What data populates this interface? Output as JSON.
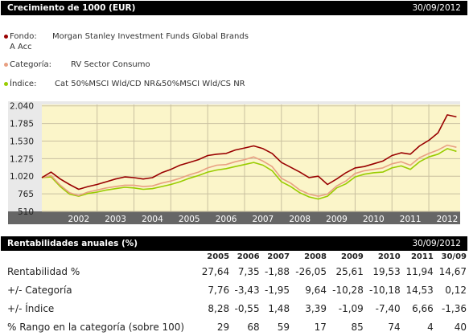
{
  "header": {
    "title": "Crecimiento de 1000 (EUR)",
    "date": "30/09/2012"
  },
  "legend": [
    {
      "label": "Fondo:",
      "value": "Morgan Stanley Investment Funds Global Brands",
      "value2": "A Acc",
      "color": "#990000"
    },
    {
      "label": "Categoría:",
      "value": "RV Sector Consumo",
      "color": "#e8a082"
    },
    {
      "label": "Índice:",
      "value": "Cat 50%MSCI Wld/CD NR&50%MSCI Wld/CS NR",
      "color": "#99cc00"
    }
  ],
  "chart_data": {
    "type": "line",
    "xlim": [
      2001.5,
      2012.85
    ],
    "ylim": [
      510,
      2060
    ],
    "yticks": [
      "2.040",
      "1.785",
      "1.530",
      "1.275",
      "1.020",
      "765",
      "510"
    ],
    "ytick_values": [
      2040,
      1785,
      1530,
      1275,
      1020,
      765,
      510
    ],
    "xticks": [
      "2002",
      "2003",
      "2004",
      "2005",
      "2006",
      "2007",
      "2008",
      "2009",
      "2010",
      "2011",
      "2012"
    ],
    "grid": true,
    "series": [
      {
        "name": "Fondo",
        "color": "#990000",
        "x": [
          2001.5,
          2001.75,
          2002.0,
          2002.25,
          2002.5,
          2002.75,
          2003.0,
          2003.25,
          2003.5,
          2003.75,
          2004.0,
          2004.25,
          2004.5,
          2004.75,
          2005.0,
          2005.25,
          2005.5,
          2005.75,
          2006.0,
          2006.25,
          2006.5,
          2006.75,
          2007.0,
          2007.25,
          2007.5,
          2007.75,
          2008.0,
          2008.25,
          2008.5,
          2008.75,
          2009.0,
          2009.25,
          2009.5,
          2009.75,
          2010.0,
          2010.25,
          2010.5,
          2010.75,
          2011.0,
          2011.25,
          2011.5,
          2011.75,
          2012.0,
          2012.25,
          2012.5,
          2012.75
        ],
        "y": [
          1000,
          1080,
          980,
          900,
          830,
          870,
          900,
          940,
          980,
          1010,
          1000,
          980,
          1000,
          1070,
          1120,
          1180,
          1220,
          1260,
          1320,
          1340,
          1350,
          1400,
          1430,
          1460,
          1420,
          1350,
          1220,
          1150,
          1080,
          1000,
          1020,
          900,
          980,
          1070,
          1140,
          1160,
          1200,
          1240,
          1320,
          1360,
          1340,
          1460,
          1540,
          1650,
          1910,
          1880
        ]
      },
      {
        "name": "Categoría",
        "color": "#e8a082",
        "x": [
          2001.5,
          2001.75,
          2002.0,
          2002.25,
          2002.5,
          2002.75,
          2003.0,
          2003.25,
          2003.5,
          2003.75,
          2004.0,
          2004.25,
          2004.5,
          2004.75,
          2005.0,
          2005.25,
          2005.5,
          2005.75,
          2006.0,
          2006.25,
          2006.5,
          2006.75,
          2007.0,
          2007.25,
          2007.5,
          2007.75,
          2008.0,
          2008.25,
          2008.5,
          2008.75,
          2009.0,
          2009.25,
          2009.5,
          2009.75,
          2010.0,
          2010.25,
          2010.5,
          2010.75,
          2011.0,
          2011.25,
          2011.5,
          2011.75,
          2012.0,
          2012.25,
          2012.5,
          2012.75
        ],
        "y": [
          1000,
          1030,
          890,
          780,
          740,
          790,
          820,
          850,
          870,
          890,
          890,
          870,
          880,
          920,
          950,
          990,
          1040,
          1080,
          1140,
          1180,
          1190,
          1230,
          1260,
          1300,
          1240,
          1160,
          990,
          920,
          820,
          760,
          730,
          760,
          880,
          950,
          1060,
          1100,
          1120,
          1140,
          1200,
          1230,
          1180,
          1290,
          1350,
          1400,
          1470,
          1440
        ]
      },
      {
        "name": "Índice",
        "color": "#99cc00",
        "x": [
          2001.5,
          2001.75,
          2002.0,
          2002.25,
          2002.5,
          2002.75,
          2003.0,
          2003.25,
          2003.5,
          2003.75,
          2004.0,
          2004.25,
          2004.5,
          2004.75,
          2005.0,
          2005.25,
          2005.5,
          2005.75,
          2006.0,
          2006.25,
          2006.5,
          2006.75,
          2007.0,
          2007.25,
          2007.5,
          2007.75,
          2008.0,
          2008.25,
          2008.5,
          2008.75,
          2009.0,
          2009.25,
          2009.5,
          2009.75,
          2010.0,
          2010.25,
          2010.5,
          2010.75,
          2011.0,
          2011.25,
          2011.5,
          2011.75,
          2012.0,
          2012.25,
          2012.5,
          2012.75
        ],
        "y": [
          1000,
          1010,
          870,
          760,
          730,
          770,
          790,
          820,
          840,
          860,
          850,
          830,
          840,
          870,
          900,
          940,
          990,
          1030,
          1080,
          1110,
          1130,
          1160,
          1190,
          1220,
          1180,
          1100,
          940,
          870,
          780,
          720,
          690,
          730,
          850,
          910,
          1010,
          1050,
          1070,
          1080,
          1140,
          1170,
          1120,
          1230,
          1300,
          1340,
          1420,
          1380
        ]
      }
    ]
  },
  "annual": {
    "title": "Rentabilidades anuales (%)",
    "date": "30/09/2012",
    "columns": [
      "2005",
      "2006",
      "2007",
      "2008",
      "2009",
      "2010",
      "2011",
      "30/09"
    ],
    "rows": [
      {
        "label": "Rentabilidad %",
        "values": [
          "27,64",
          "7,35",
          "-1,88",
          "-26,05",
          "25,61",
          "19,53",
          "11,94",
          "14,67"
        ]
      },
      {
        "label": "+/- Categoría",
        "values": [
          "7,76",
          "-3,43",
          "-1,95",
          "9,64",
          "-10,28",
          "-10,18",
          "14,53",
          "0,12"
        ]
      },
      {
        "label": "+/- Índice",
        "values": [
          "8,28",
          "-0,55",
          "1,48",
          "3,39",
          "-1,09",
          "-7,40",
          "6,66",
          "-1,36"
        ]
      },
      {
        "label": "% Rango en la categoría (sobre 100)",
        "values": [
          "29",
          "68",
          "59",
          "17",
          "85",
          "74",
          "4",
          "40"
        ]
      }
    ]
  }
}
